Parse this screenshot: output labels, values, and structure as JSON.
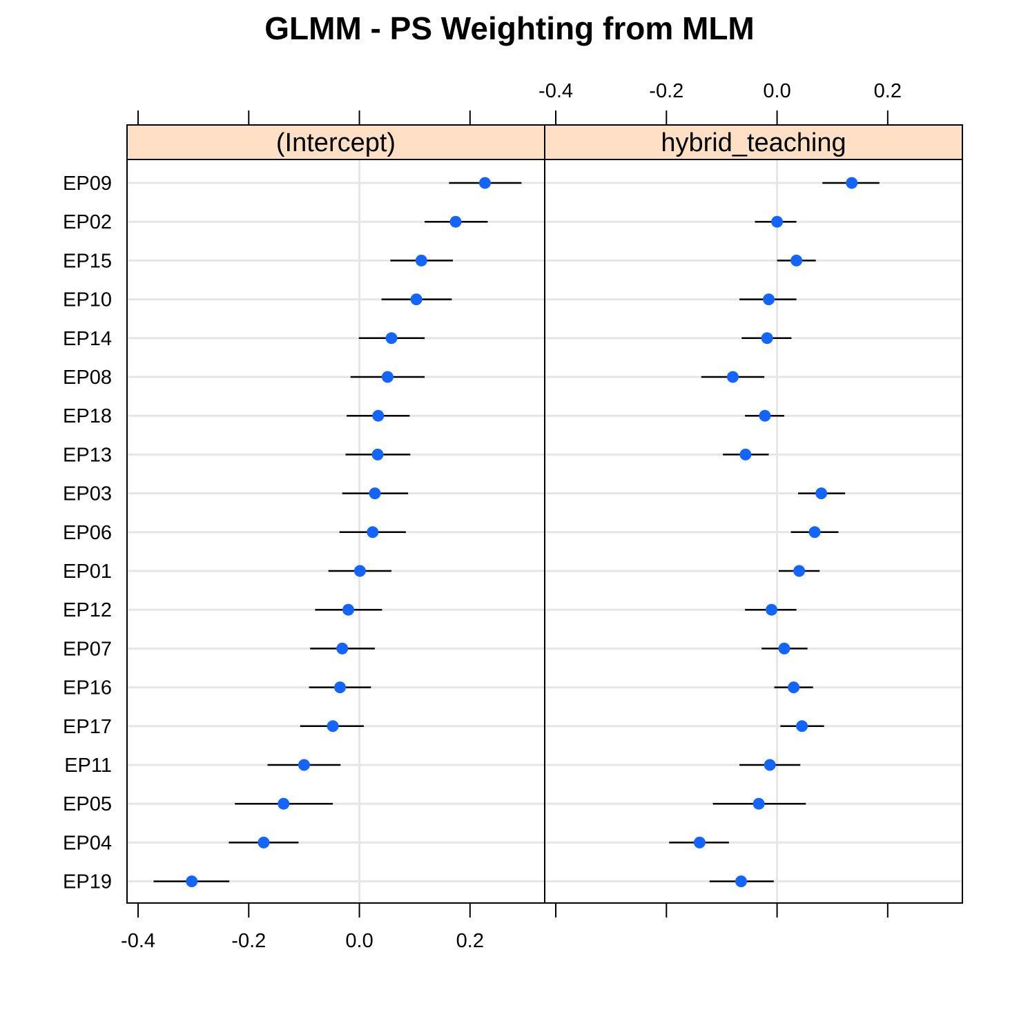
{
  "chart_data": {
    "type": "scatter",
    "title": "GLMM - PS Weighting from MLM",
    "categories": [
      "EP09",
      "EP02",
      "EP15",
      "EP10",
      "EP14",
      "EP08",
      "EP18",
      "EP13",
      "EP03",
      "EP06",
      "EP01",
      "EP12",
      "EP07",
      "EP16",
      "EP17",
      "EP11",
      "EP05",
      "EP04",
      "EP19"
    ],
    "xlim": [
      -0.42,
      0.335
    ],
    "ticks": [
      -0.4,
      -0.2,
      0.0,
      0.2
    ],
    "tick_labels": [
      "-0.4",
      "-0.2",
      "0.0",
      "0.2"
    ],
    "grid": true,
    "colors": {
      "point": "#1464ff",
      "strip": "#ffe0c4",
      "grid": "#e6e6e6"
    },
    "panels": [
      {
        "strip": "(Intercept)",
        "series": [
          {
            "estimate": [
              0.227,
              0.174,
              0.112,
              0.103,
              0.058,
              0.051,
              0.034,
              0.033,
              0.028,
              0.024,
              0.001,
              -0.02,
              -0.031,
              -0.035,
              -0.048,
              -0.1,
              -0.137,
              -0.173,
              -0.303
            ],
            "lower": [
              0.162,
              0.118,
              0.056,
              0.04,
              -0.001,
              -0.016,
              -0.023,
              -0.025,
              -0.031,
              -0.036,
              -0.056,
              -0.08,
              -0.089,
              -0.091,
              -0.107,
              -0.166,
              -0.225,
              -0.236,
              -0.372
            ],
            "upper": [
              0.293,
              0.232,
              0.169,
              0.167,
              0.118,
              0.118,
              0.091,
              0.092,
              0.088,
              0.084,
              0.058,
              0.041,
              0.028,
              0.021,
              0.008,
              -0.034,
              -0.048,
              -0.11,
              -0.235
            ]
          }
        ]
      },
      {
        "strip": "hybrid_teaching",
        "series": [
          {
            "estimate": [
              0.135,
              0.0,
              0.035,
              -0.015,
              -0.018,
              -0.08,
              -0.022,
              -0.057,
              0.08,
              0.068,
              0.04,
              -0.01,
              0.013,
              0.03,
              0.045,
              -0.013,
              -0.033,
              -0.14,
              -0.065
            ],
            "lower": [
              0.082,
              -0.04,
              0.0,
              -0.068,
              -0.064,
              -0.137,
              -0.058,
              -0.098,
              0.038,
              0.025,
              0.003,
              -0.058,
              -0.028,
              -0.005,
              0.006,
              -0.068,
              -0.116,
              -0.195,
              -0.122
            ],
            "upper": [
              0.185,
              0.035,
              0.07,
              0.035,
              0.026,
              -0.023,
              0.013,
              -0.015,
              0.123,
              0.111,
              0.077,
              0.035,
              0.055,
              0.065,
              0.085,
              0.042,
              0.052,
              -0.087,
              -0.006
            ]
          }
        ]
      }
    ]
  }
}
